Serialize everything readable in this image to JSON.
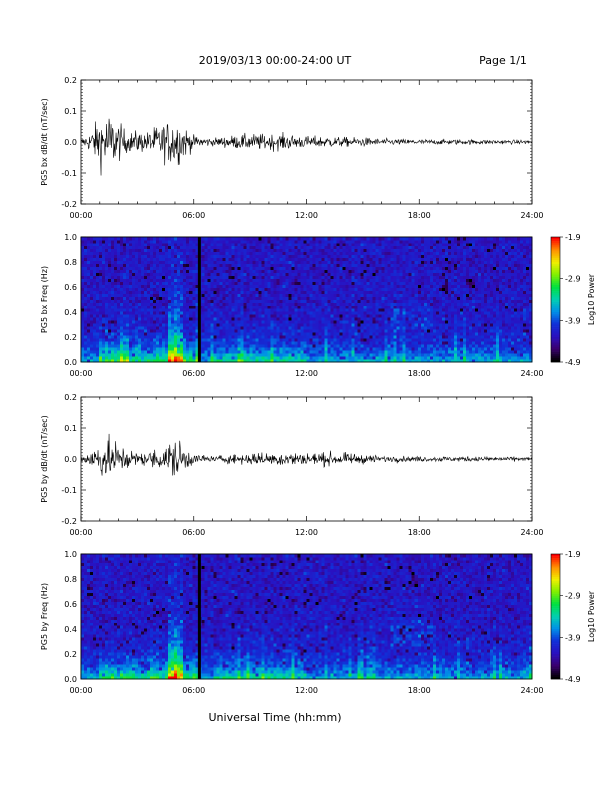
{
  "header": {
    "title": "2019/03/13  00:00-24:00 UT",
    "page": "Page 1/1"
  },
  "footer": {
    "xlabel": "Universal Time (hh:mm)"
  },
  "colors": {
    "trace": "#000000",
    "colormap": [
      "#000000",
      "#3a0070",
      "#2a10c0",
      "#1030d8",
      "#0090e8",
      "#00d0b0",
      "#00e040",
      "#80f000",
      "#f0f000",
      "#ff9000",
      "#ff0000"
    ]
  },
  "chart_data": [
    {
      "type": "line",
      "ylabel": "PG5 bx dB/dt (nT/sec)",
      "xlim": [
        0,
        24
      ],
      "ylim": [
        -0.2,
        0.2
      ],
      "xticks": [
        "00:00",
        "06:00",
        "12:00",
        "18:00",
        "24:00"
      ],
      "yticks": [
        "-0.2",
        "-0.1",
        "0.0",
        "0.1",
        "0.2"
      ],
      "envelope": {
        "hours": [
          0,
          0.5,
          1.0,
          1.5,
          2.0,
          2.5,
          3.0,
          3.5,
          4.0,
          4.5,
          5.0,
          5.5,
          6.0,
          7.0,
          8.0,
          9.0,
          10.0,
          11.0,
          12.0,
          13.0,
          14.0,
          15.0,
          16.0,
          18.0,
          20.0,
          22.0,
          24.0
        ],
        "amplitude": [
          0.01,
          0.03,
          0.08,
          0.09,
          0.06,
          0.03,
          0.035,
          0.03,
          0.05,
          0.06,
          0.08,
          0.05,
          0.02,
          0.012,
          0.02,
          0.025,
          0.025,
          0.025,
          0.018,
          0.018,
          0.015,
          0.014,
          0.01,
          0.008,
          0.008,
          0.007,
          0.006
        ]
      }
    },
    {
      "type": "heatmap",
      "ylabel": "PG5 bx Freq (Hz)",
      "xlim": [
        0,
        24
      ],
      "ylim": [
        0.0,
        1.0
      ],
      "xticks": [
        "00:00",
        "06:00",
        "12:00",
        "18:00",
        "24:00"
      ],
      "yticks": [
        "0.0",
        "0.2",
        "0.4",
        "0.6",
        "0.8",
        "1.0"
      ],
      "colorbar": {
        "label": "Log10 Power",
        "min": -4.9,
        "max": -1.9,
        "ticks": [
          "-1.9",
          "-2.9",
          "-3.9",
          "-4.9"
        ]
      },
      "data_gap_hour": 6.3
    },
    {
      "type": "line",
      "ylabel": "PG5 by dB/dt (nT/sec)",
      "xlim": [
        0,
        24
      ],
      "ylim": [
        -0.2,
        0.2
      ],
      "xticks": [
        "00:00",
        "06:00",
        "12:00",
        "18:00",
        "24:00"
      ],
      "yticks": [
        "-0.2",
        "-0.1",
        "0.0",
        "0.1",
        "0.2"
      ],
      "envelope": {
        "hours": [
          0,
          0.5,
          1.0,
          1.5,
          2.0,
          2.5,
          3.0,
          3.5,
          4.0,
          4.5,
          5.0,
          5.5,
          6.0,
          7.0,
          8.0,
          9.0,
          10.0,
          11.0,
          12.0,
          13.0,
          14.0,
          15.0,
          16.0,
          18.0,
          20.0,
          22.0,
          24.0
        ],
        "amplitude": [
          0.01,
          0.03,
          0.05,
          0.06,
          0.05,
          0.03,
          0.02,
          0.02,
          0.03,
          0.04,
          0.07,
          0.04,
          0.015,
          0.01,
          0.015,
          0.018,
          0.02,
          0.022,
          0.02,
          0.02,
          0.018,
          0.014,
          0.01,
          0.008,
          0.008,
          0.007,
          0.006
        ]
      }
    },
    {
      "type": "heatmap",
      "ylabel": "PG5 by Freq (Hz)",
      "xlim": [
        0,
        24
      ],
      "ylim": [
        0.0,
        1.0
      ],
      "xticks": [
        "00:00",
        "06:00",
        "12:00",
        "18:00",
        "24:00"
      ],
      "yticks": [
        "0.0",
        "0.2",
        "0.4",
        "0.6",
        "0.8",
        "1.0"
      ],
      "colorbar": {
        "label": "Log10 Power",
        "min": -4.9,
        "max": -1.9,
        "ticks": [
          "-1.9",
          "-2.9",
          "-3.9",
          "-4.9"
        ]
      },
      "data_gap_hour": 6.3
    }
  ]
}
